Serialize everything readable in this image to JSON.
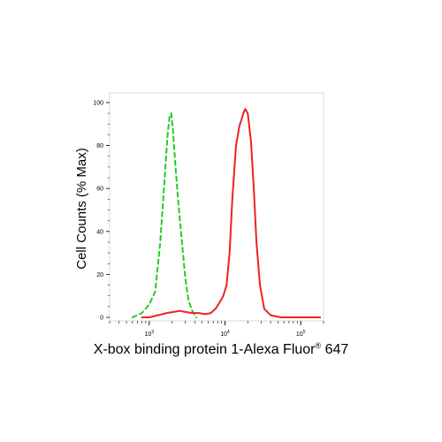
{
  "chart_data": {
    "type": "line",
    "title": "",
    "xlabel": {
      "before": "X-box binding protein 1-Alexa Fluor",
      "mark": "®",
      "after": " 647"
    },
    "ylabel": "Cell Counts (% Max)",
    "xscale": "log",
    "xlim": [
      300,
      200000
    ],
    "ylim": [
      0,
      100
    ],
    "yticks": [
      "0",
      "20",
      "40",
      "60",
      "80",
      "100"
    ],
    "xticks": [
      {
        "value": 1000,
        "base": "10",
        "exp": "3"
      },
      {
        "value": 10000,
        "base": "10",
        "exp": "4"
      },
      {
        "value": 100000,
        "base": "10",
        "exp": "5"
      }
    ],
    "series": [
      {
        "color": "#22cc22",
        "dash": "dashed",
        "x": [
          600,
          800,
          1000,
          1200,
          1400,
          1600,
          1750,
          1850,
          1950,
          2050,
          2200,
          2400,
          2700,
          3000,
          3300,
          3700,
          4200
        ],
        "y": [
          0,
          2,
          6,
          12,
          35,
          65,
          85,
          93,
          95,
          88,
          72,
          55,
          35,
          18,
          8,
          3,
          0
        ]
      },
      {
        "color": "#ee2222",
        "dash": "solid",
        "x": [
          800,
          1000,
          1300,
          1700,
          2100,
          2500,
          3000,
          3700,
          4500,
          5500,
          6500,
          7500,
          8500,
          9500,
          10500,
          11500,
          12500,
          14000,
          15500,
          16500,
          17500,
          18500,
          20000,
          22000,
          24000,
          26000,
          29000,
          33000,
          40000,
          55000,
          80000,
          120000,
          180000
        ],
        "y": [
          0,
          0,
          1,
          2,
          2.5,
          3,
          2.5,
          2,
          2,
          1.5,
          2,
          4,
          7,
          10,
          15,
          30,
          55,
          80,
          89,
          92,
          95,
          97,
          95,
          82,
          60,
          35,
          15,
          4,
          1,
          0,
          0,
          0,
          0
        ]
      }
    ]
  }
}
